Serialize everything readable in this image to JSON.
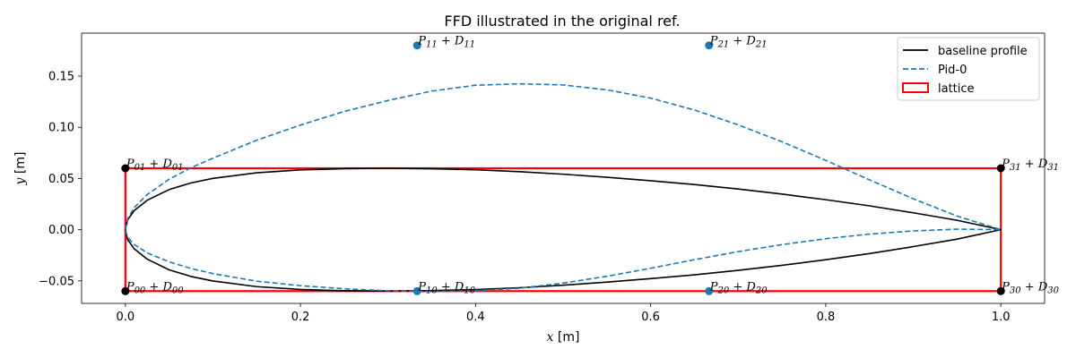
{
  "chart_data": {
    "type": "line",
    "title": "FFD illustrated in the original ref.",
    "xlabel": "x [m]",
    "ylabel": "y [m]",
    "xlim": [
      -0.05,
      1.05
    ],
    "ylim": [
      -0.072,
      0.192
    ],
    "xticks": [
      0.0,
      0.2,
      0.4,
      0.6,
      0.8,
      1.0
    ],
    "xtick_labels": [
      "0.0",
      "0.2",
      "0.4",
      "0.6",
      "0.8",
      "1.0"
    ],
    "yticks": [
      -0.05,
      0.0,
      0.05,
      0.1,
      0.15
    ],
    "ytick_labels": [
      "−0.05",
      "0.00",
      "0.05",
      "0.10",
      "0.15"
    ],
    "legend_position": "top-right",
    "grid": false,
    "series": [
      {
        "name": "baseline profile",
        "color": "#000000",
        "style": "solid",
        "x": [
          0.0,
          0.0025,
          0.01,
          0.025,
          0.05,
          0.075,
          0.1,
          0.15,
          0.2,
          0.25,
          0.3,
          0.35,
          0.4,
          0.45,
          0.5,
          0.55,
          0.6,
          0.65,
          0.7,
          0.75,
          0.8,
          0.85,
          0.9,
          0.95,
          1.0,
          0.95,
          0.9,
          0.85,
          0.8,
          0.75,
          0.7,
          0.65,
          0.6,
          0.55,
          0.5,
          0.45,
          0.4,
          0.35,
          0.3,
          0.25,
          0.2,
          0.15,
          0.1,
          0.075,
          0.05,
          0.025,
          0.01,
          0.0025,
          0.0
        ],
        "y": [
          0.0,
          0.0095,
          0.0186,
          0.0288,
          0.0392,
          0.0457,
          0.0501,
          0.0556,
          0.0584,
          0.0596,
          0.06,
          0.0595,
          0.0585,
          0.0567,
          0.0542,
          0.0512,
          0.0478,
          0.0441,
          0.0397,
          0.0348,
          0.0293,
          0.0233,
          0.0165,
          0.0092,
          0.0,
          -0.0092,
          -0.0165,
          -0.0233,
          -0.0293,
          -0.0348,
          -0.0397,
          -0.0441,
          -0.0478,
          -0.0512,
          -0.0542,
          -0.0567,
          -0.0585,
          -0.0595,
          -0.06,
          -0.0596,
          -0.0584,
          -0.0556,
          -0.0501,
          -0.0457,
          -0.0392,
          -0.0288,
          -0.0186,
          -0.0095,
          0.0
        ]
      },
      {
        "name": "Pid-0",
        "color": "#1f77b4",
        "style": "dashed",
        "x": [
          0.0,
          0.0025,
          0.01,
          0.025,
          0.05,
          0.075,
          0.1,
          0.15,
          0.2,
          0.25,
          0.3,
          0.35,
          0.4,
          0.45,
          0.5,
          0.55,
          0.6,
          0.65,
          0.7,
          0.75,
          0.8,
          0.85,
          0.9,
          0.95,
          1.0,
          0.95,
          0.9,
          0.85,
          0.8,
          0.75,
          0.7,
          0.65,
          0.6,
          0.55,
          0.5,
          0.45,
          0.4,
          0.35,
          0.3,
          0.25,
          0.2,
          0.15,
          0.1,
          0.075,
          0.05,
          0.025,
          0.01,
          0.0025,
          0.0
        ],
        "y": [
          0.0,
          0.0106,
          0.0215,
          0.0343,
          0.0493,
          0.0606,
          0.0698,
          0.0874,
          0.1022,
          0.1155,
          0.1262,
          0.1354,
          0.1411,
          0.1425,
          0.1414,
          0.1366,
          0.1285,
          0.1169,
          0.1024,
          0.0859,
          0.0677,
          0.0487,
          0.0302,
          0.0133,
          0.0,
          0.0005,
          -0.0012,
          -0.0043,
          -0.0088,
          -0.0146,
          -0.0214,
          -0.0293,
          -0.0377,
          -0.0455,
          -0.0522,
          -0.0572,
          -0.0596,
          -0.0604,
          -0.0597,
          -0.0577,
          -0.0547,
          -0.0503,
          -0.0429,
          -0.0379,
          -0.0314,
          -0.0227,
          -0.0144,
          -0.0072,
          0.0
        ]
      }
    ],
    "lattice": {
      "name": "lattice",
      "color": "#ff0000",
      "x": [
        0.0,
        1.0
      ],
      "y": [
        -0.06,
        0.06
      ]
    },
    "control_points": [
      {
        "label": "P_{00} + D_{00}",
        "base": "P",
        "sub": "00",
        "sub2": "00",
        "x": 0.0,
        "y": -0.06,
        "color": "#000000"
      },
      {
        "label": "P_{01} + D_{01}",
        "base": "P",
        "sub": "01",
        "sub2": "01",
        "x": 0.0,
        "y": 0.06,
        "color": "#000000"
      },
      {
        "label": "P_{30} + D_{30}",
        "base": "P",
        "sub": "30",
        "sub2": "30",
        "x": 1.0,
        "y": -0.06,
        "color": "#000000"
      },
      {
        "label": "P_{31} + D_{31}",
        "base": "P",
        "sub": "31",
        "sub2": "31",
        "x": 1.0,
        "y": 0.06,
        "color": "#000000"
      },
      {
        "label": "P_{10} + D_{10}",
        "base": "P",
        "sub": "10",
        "sub2": "10",
        "x": 0.3333,
        "y": -0.06,
        "color": "#1f77b4"
      },
      {
        "label": "P_{11} + D_{11}",
        "base": "P",
        "sub": "11",
        "sub2": "11",
        "x": 0.3333,
        "y": 0.18,
        "color": "#1f77b4"
      },
      {
        "label": "P_{20} + D_{20}",
        "base": "P",
        "sub": "20",
        "sub2": "20",
        "x": 0.6667,
        "y": -0.06,
        "color": "#1f77b4"
      },
      {
        "label": "P_{21} + D_{21}",
        "base": "P",
        "sub": "21",
        "sub2": "21",
        "x": 0.6667,
        "y": 0.18,
        "color": "#1f77b4"
      }
    ]
  }
}
